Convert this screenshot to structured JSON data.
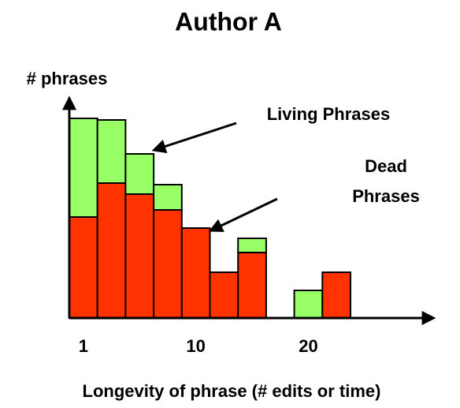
{
  "chart_data": {
    "type": "bar",
    "stacked": true,
    "title": "Author A",
    "x_label": "Longevity of phrase (# edits or time)",
    "y_label": "# phrases",
    "categories": [
      "1",
      null,
      null,
      null,
      "10",
      null,
      null,
      null,
      "20",
      null
    ],
    "series": [
      {
        "name": "Dead Phrases",
        "color": "#ff3300",
        "values": [
          128,
          171,
          157,
          137,
          114,
          58,
          83,
          null,
          0,
          58
        ]
      },
      {
        "name": "Living Phrases",
        "color": "#99ff66",
        "values": [
          125,
          80,
          51,
          32,
          0,
          0,
          18,
          null,
          35,
          0
        ]
      }
    ],
    "ylim": [
      0,
      260
    ]
  }
}
